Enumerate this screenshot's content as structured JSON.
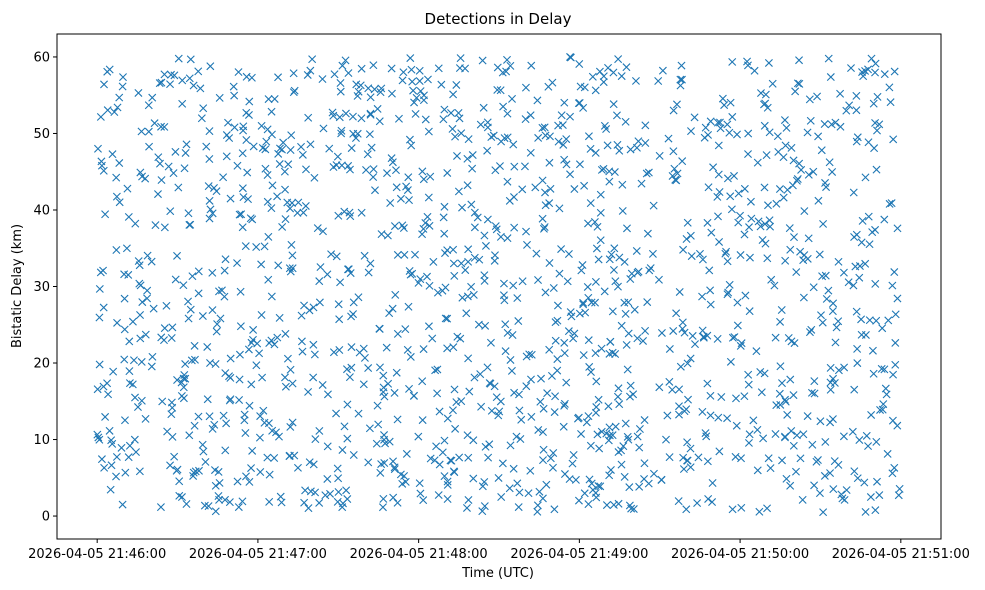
{
  "chart_data": {
    "type": "scatter",
    "title": "Detections in Delay",
    "xlabel": "Time (UTC)",
    "ylabel": "Bistatic Delay (km)",
    "xlim": [
      "2026-04-05 21:45:45",
      "2026-04-05 21:51:15"
    ],
    "ylim": [
      -3,
      63
    ],
    "x_ticks": [
      "2026-04-05 21:46:00",
      "2026-04-05 21:47:00",
      "2026-04-05 21:48:00",
      "2026-04-05 21:49:00",
      "2026-04-05 21:50:00",
      "2026-04-05 21:51:00"
    ],
    "y_ticks": [
      0,
      10,
      20,
      30,
      40,
      50,
      60
    ],
    "grid": false,
    "marker": "x",
    "color": "#1f77b4",
    "x_start": "2026-04-05 21:46:00",
    "x_end": "2026-04-05 21:51:00",
    "y_range": [
      0.5,
      60
    ],
    "point_count": 1500
  }
}
